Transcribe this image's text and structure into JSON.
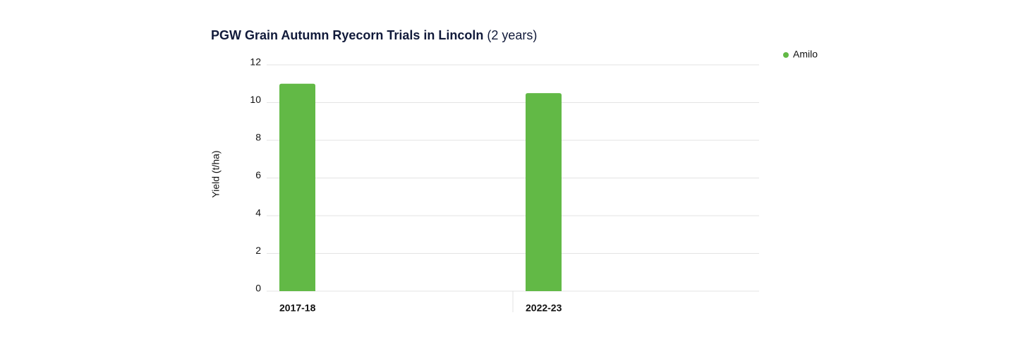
{
  "chart_data": {
    "type": "bar",
    "title": "PGW Grain Autumn Ryecorn Trials in Lincoln",
    "subtitle": "(2 years)",
    "y_label": "Yield (t/ha)",
    "categories": [
      "2017-18",
      "2022-23"
    ],
    "series": [
      {
        "name": "Amilo",
        "color": "#62b946",
        "values": [
          11.0,
          10.5
        ]
      }
    ],
    "ylim": [
      0,
      12
    ],
    "yticks": [
      0,
      2,
      4,
      6,
      8,
      10,
      12
    ],
    "grid": true,
    "legend": "top-right"
  }
}
